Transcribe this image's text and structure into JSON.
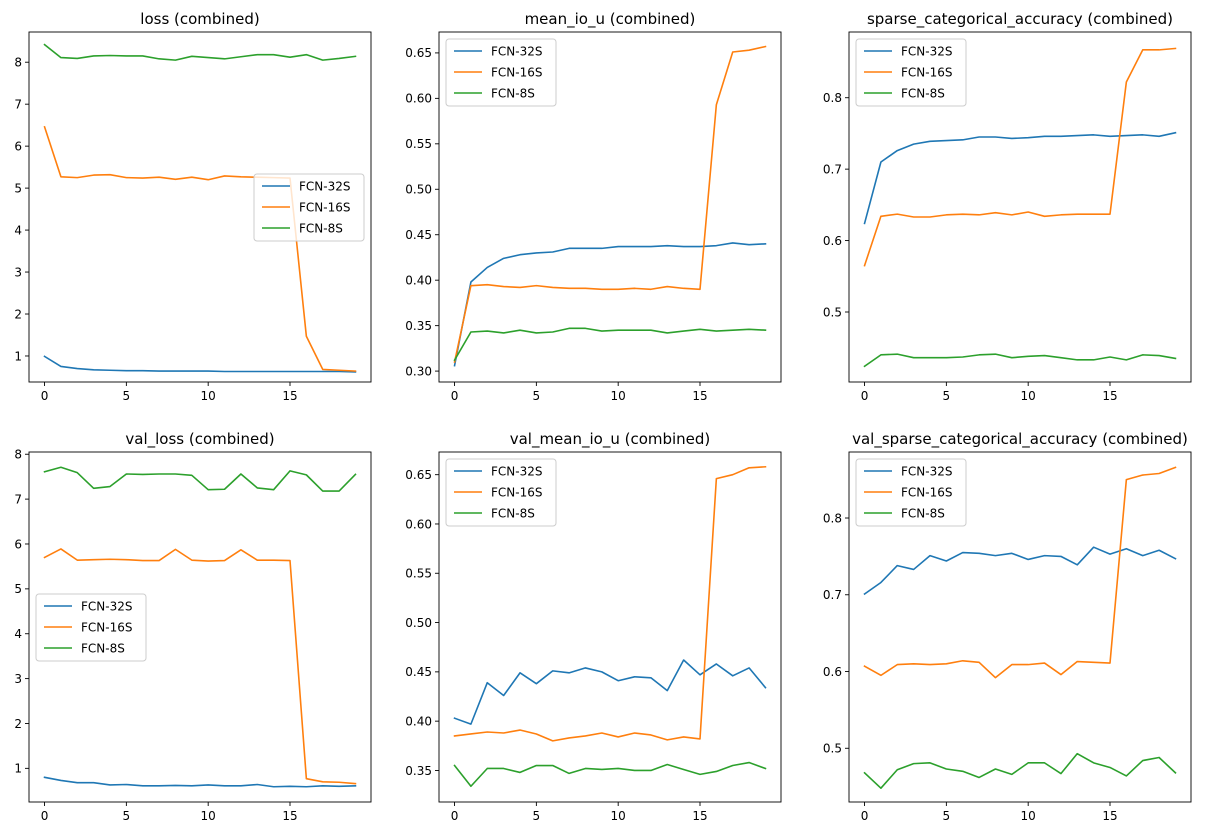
{
  "figure": {
    "colors": {
      "FCN-32S": "#1f77b4",
      "FCN-16S": "#ff7f0e",
      "FCN-8S": "#2ca02c"
    }
  },
  "chart_data": [
    {
      "type": "line",
      "title": "loss (combined)",
      "xlabel": "",
      "ylabel": "",
      "x": [
        0,
        1,
        2,
        3,
        4,
        5,
        6,
        7,
        8,
        9,
        10,
        11,
        12,
        13,
        14,
        15,
        16,
        17,
        18,
        19
      ],
      "xlim": [
        -0.95,
        19.95
      ],
      "ylim": [
        0.38,
        8.72
      ],
      "xticks": [
        0,
        5,
        10,
        15
      ],
      "xtick_labels": [
        "0",
        "5",
        "10",
        "15"
      ],
      "yticks": [
        1,
        2,
        3,
        4,
        5,
        6,
        7,
        8
      ],
      "ytick_labels": [
        "1",
        "2",
        "3",
        "4",
        "5",
        "6",
        "7",
        "8"
      ],
      "legend": "center-right",
      "grid": false,
      "series": [
        {
          "name": "FCN-32S",
          "values": [
            0.99,
            0.75,
            0.7,
            0.67,
            0.66,
            0.65,
            0.65,
            0.64,
            0.64,
            0.64,
            0.64,
            0.63,
            0.63,
            0.63,
            0.63,
            0.63,
            0.63,
            0.63,
            0.63,
            0.62
          ]
        },
        {
          "name": "FCN-16S",
          "values": [
            6.46,
            5.27,
            5.25,
            5.31,
            5.32,
            5.25,
            5.24,
            5.26,
            5.21,
            5.26,
            5.2,
            5.29,
            5.27,
            5.26,
            5.25,
            5.24,
            1.47,
            0.68,
            0.66,
            0.64
          ]
        },
        {
          "name": "FCN-8S",
          "values": [
            8.42,
            8.11,
            8.09,
            8.15,
            8.16,
            8.15,
            8.15,
            8.08,
            8.05,
            8.14,
            8.11,
            8.08,
            8.13,
            8.18,
            8.18,
            8.12,
            8.18,
            8.05,
            8.09,
            8.14
          ]
        }
      ]
    },
    {
      "type": "line",
      "title": "mean_io_u (combined)",
      "xlabel": "",
      "ylabel": "",
      "x": [
        0,
        1,
        2,
        3,
        4,
        5,
        6,
        7,
        8,
        9,
        10,
        11,
        12,
        13,
        14,
        15,
        16,
        17,
        18,
        19
      ],
      "xlim": [
        -0.95,
        19.95
      ],
      "ylim": [
        0.288,
        0.673
      ],
      "xticks": [
        0,
        5,
        10,
        15
      ],
      "xtick_labels": [
        "0",
        "5",
        "10",
        "15"
      ],
      "yticks": [
        0.3,
        0.35,
        0.4,
        0.45,
        0.5,
        0.55,
        0.6,
        0.65
      ],
      "ytick_labels": [
        "0.30",
        "0.35",
        "0.40",
        "0.45",
        "0.50",
        "0.55",
        "0.60",
        "0.65"
      ],
      "legend": "top-left",
      "grid": false,
      "series": [
        {
          "name": "FCN-32S",
          "values": [
            0.306,
            0.398,
            0.414,
            0.424,
            0.428,
            0.43,
            0.431,
            0.435,
            0.435,
            0.435,
            0.437,
            0.437,
            0.437,
            0.438,
            0.437,
            0.437,
            0.438,
            0.441,
            0.439,
            0.44
          ]
        },
        {
          "name": "FCN-16S",
          "values": [
            0.31,
            0.394,
            0.395,
            0.393,
            0.392,
            0.394,
            0.392,
            0.391,
            0.391,
            0.39,
            0.39,
            0.391,
            0.39,
            0.393,
            0.391,
            0.39,
            0.593,
            0.651,
            0.653,
            0.657
          ]
        },
        {
          "name": "FCN-8S",
          "values": [
            0.312,
            0.343,
            0.344,
            0.342,
            0.345,
            0.342,
            0.343,
            0.347,
            0.347,
            0.344,
            0.345,
            0.345,
            0.345,
            0.342,
            0.344,
            0.346,
            0.344,
            0.345,
            0.346,
            0.345
          ]
        }
      ]
    },
    {
      "type": "line",
      "title": "sparse_categorical_accuracy (combined)",
      "xlabel": "",
      "ylabel": "",
      "x": [
        0,
        1,
        2,
        3,
        4,
        5,
        6,
        7,
        8,
        9,
        10,
        11,
        12,
        13,
        14,
        15,
        16,
        17,
        18,
        19
      ],
      "xlim": [
        -0.95,
        19.95
      ],
      "ylim": [
        0.402,
        0.892
      ],
      "xticks": [
        0,
        5,
        10,
        15
      ],
      "xtick_labels": [
        "0",
        "5",
        "10",
        "15"
      ],
      "yticks": [
        0.5,
        0.6,
        0.7,
        0.8
      ],
      "ytick_labels": [
        "0.5",
        "0.6",
        "0.7",
        "0.8"
      ],
      "legend": "top-left",
      "grid": false,
      "series": [
        {
          "name": "FCN-32S",
          "values": [
            0.624,
            0.71,
            0.726,
            0.735,
            0.739,
            0.74,
            0.741,
            0.745,
            0.745,
            0.743,
            0.744,
            0.746,
            0.746,
            0.747,
            0.748,
            0.746,
            0.747,
            0.748,
            0.746,
            0.751
          ]
        },
        {
          "name": "FCN-16S",
          "values": [
            0.565,
            0.634,
            0.637,
            0.633,
            0.633,
            0.636,
            0.637,
            0.636,
            0.639,
            0.636,
            0.64,
            0.634,
            0.636,
            0.637,
            0.637,
            0.637,
            0.822,
            0.867,
            0.867,
            0.869
          ]
        },
        {
          "name": "FCN-8S",
          "values": [
            0.424,
            0.44,
            0.441,
            0.436,
            0.436,
            0.436,
            0.437,
            0.44,
            0.441,
            0.436,
            0.438,
            0.439,
            0.436,
            0.433,
            0.433,
            0.437,
            0.433,
            0.44,
            0.439,
            0.435
          ]
        }
      ]
    },
    {
      "type": "line",
      "title": "val_loss (combined)",
      "xlabel": "",
      "ylabel": "",
      "x": [
        0,
        1,
        2,
        3,
        4,
        5,
        6,
        7,
        8,
        9,
        10,
        11,
        12,
        13,
        14,
        15,
        16,
        17,
        18,
        19
      ],
      "xlim": [
        -0.95,
        19.95
      ],
      "ylim": [
        0.25,
        8.05
      ],
      "xticks": [
        0,
        5,
        10,
        15
      ],
      "xtick_labels": [
        "0",
        "5",
        "10",
        "15"
      ],
      "yticks": [
        1,
        2,
        3,
        4,
        5,
        6,
        7,
        8
      ],
      "ytick_labels": [
        "1",
        "2",
        "3",
        "4",
        "5",
        "6",
        "7",
        "8"
      ],
      "legend": "center-left",
      "grid": false,
      "series": [
        {
          "name": "FCN-32S",
          "values": [
            0.8,
            0.73,
            0.68,
            0.68,
            0.63,
            0.64,
            0.61,
            0.61,
            0.62,
            0.61,
            0.63,
            0.61,
            0.61,
            0.64,
            0.59,
            0.6,
            0.59,
            0.61,
            0.6,
            0.61
          ]
        },
        {
          "name": "FCN-16S",
          "values": [
            5.7,
            5.89,
            5.64,
            5.65,
            5.66,
            5.65,
            5.63,
            5.63,
            5.88,
            5.64,
            5.62,
            5.63,
            5.87,
            5.64,
            5.64,
            5.63,
            0.77,
            0.7,
            0.69,
            0.66
          ]
        },
        {
          "name": "FCN-8S",
          "values": [
            7.61,
            7.71,
            7.59,
            7.24,
            7.28,
            7.56,
            7.55,
            7.56,
            7.56,
            7.53,
            7.21,
            7.22,
            7.56,
            7.25,
            7.21,
            7.63,
            7.54,
            7.18,
            7.18,
            7.55
          ]
        }
      ]
    },
    {
      "type": "line",
      "title": "val_mean_io_u (combined)",
      "xlabel": "",
      "ylabel": "",
      "x": [
        0,
        1,
        2,
        3,
        4,
        5,
        6,
        7,
        8,
        9,
        10,
        11,
        12,
        13,
        14,
        15,
        16,
        17,
        18,
        19
      ],
      "xlim": [
        -0.95,
        19.95
      ],
      "ylim": [
        0.318,
        0.673
      ],
      "xticks": [
        0,
        5,
        10,
        15
      ],
      "xtick_labels": [
        "0",
        "5",
        "10",
        "15"
      ],
      "yticks": [
        0.35,
        0.4,
        0.45,
        0.5,
        0.55,
        0.6,
        0.65
      ],
      "ytick_labels": [
        "0.35",
        "0.40",
        "0.45",
        "0.50",
        "0.55",
        "0.60",
        "0.65"
      ],
      "legend": "top-left",
      "grid": false,
      "series": [
        {
          "name": "FCN-32S",
          "values": [
            0.403,
            0.397,
            0.439,
            0.426,
            0.449,
            0.438,
            0.451,
            0.449,
            0.454,
            0.45,
            0.441,
            0.445,
            0.444,
            0.431,
            0.462,
            0.447,
            0.458,
            0.446,
            0.454,
            0.434
          ]
        },
        {
          "name": "FCN-16S",
          "values": [
            0.385,
            0.387,
            0.389,
            0.388,
            0.391,
            0.387,
            0.38,
            0.383,
            0.385,
            0.388,
            0.384,
            0.388,
            0.386,
            0.381,
            0.384,
            0.382,
            0.646,
            0.65,
            0.657,
            0.658
          ]
        },
        {
          "name": "FCN-8S",
          "values": [
            0.355,
            0.334,
            0.352,
            0.352,
            0.348,
            0.355,
            0.355,
            0.347,
            0.352,
            0.351,
            0.352,
            0.35,
            0.35,
            0.356,
            0.351,
            0.346,
            0.349,
            0.355,
            0.358,
            0.352
          ]
        }
      ]
    },
    {
      "type": "line",
      "title": "val_sparse_categorical_accuracy (combined)",
      "xlabel": "",
      "ylabel": "",
      "x": [
        0,
        1,
        2,
        3,
        4,
        5,
        6,
        7,
        8,
        9,
        10,
        11,
        12,
        13,
        14,
        15,
        16,
        17,
        18,
        19
      ],
      "xlim": [
        -0.95,
        19.95
      ],
      "ylim": [
        0.43,
        0.886
      ],
      "xticks": [
        0,
        5,
        10,
        15
      ],
      "xtick_labels": [
        "0",
        "5",
        "10",
        "15"
      ],
      "yticks": [
        0.5,
        0.6,
        0.7,
        0.8
      ],
      "ytick_labels": [
        "0.5",
        "0.6",
        "0.7",
        "0.8"
      ],
      "legend": "top-left",
      "grid": false,
      "series": [
        {
          "name": "FCN-32S",
          "values": [
            0.701,
            0.716,
            0.738,
            0.733,
            0.751,
            0.744,
            0.755,
            0.754,
            0.751,
            0.754,
            0.746,
            0.751,
            0.75,
            0.739,
            0.762,
            0.753,
            0.76,
            0.751,
            0.758,
            0.747
          ]
        },
        {
          "name": "FCN-16S",
          "values": [
            0.607,
            0.595,
            0.609,
            0.61,
            0.609,
            0.61,
            0.614,
            0.612,
            0.592,
            0.609,
            0.609,
            0.611,
            0.596,
            0.613,
            0.612,
            0.611,
            0.85,
            0.856,
            0.858,
            0.866
          ]
        },
        {
          "name": "FCN-8S",
          "values": [
            0.468,
            0.448,
            0.472,
            0.48,
            0.481,
            0.473,
            0.47,
            0.462,
            0.473,
            0.466,
            0.481,
            0.481,
            0.467,
            0.493,
            0.481,
            0.475,
            0.464,
            0.484,
            0.488,
            0.468
          ]
        }
      ]
    }
  ]
}
